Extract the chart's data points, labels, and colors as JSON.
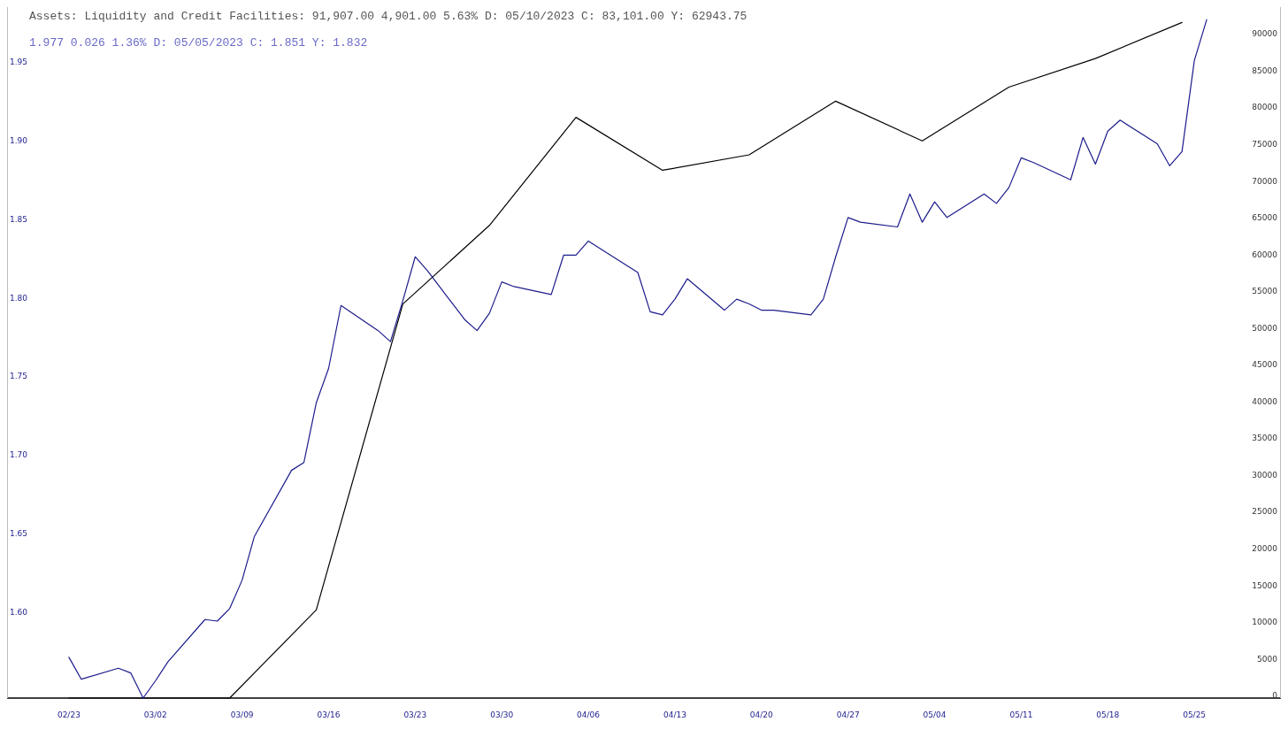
{
  "chart_data": {
    "type": "line",
    "annotations": [
      "Assets: Liquidity and Credit Facilities: 91,907.00 4,901.00 5.63% D: 05/10/2023 C: 83,101.00 Y:  62943.75",
      "1.977 0.026 1.36% D: 05/05/2023 C: 1.851 Y: 1.832"
    ],
    "xlim": [
      "2023-02-18",
      "2023-06-01"
    ],
    "xticks": [
      {
        "value": "2023-02-23",
        "label": "02/23"
      },
      {
        "value": "2023-03-02",
        "label": "03/02"
      },
      {
        "value": "2023-03-09",
        "label": "03/09"
      },
      {
        "value": "2023-03-16",
        "label": "03/16"
      },
      {
        "value": "2023-03-23",
        "label": "03/23"
      },
      {
        "value": "2023-03-30",
        "label": "03/30"
      },
      {
        "value": "2023-04-06",
        "label": "04/06"
      },
      {
        "value": "2023-04-13",
        "label": "04/13"
      },
      {
        "value": "2023-04-20",
        "label": "04/20"
      },
      {
        "value": "2023-04-27",
        "label": "04/27"
      },
      {
        "value": "2023-05-04",
        "label": "05/04"
      },
      {
        "value": "2023-05-11",
        "label": "05/11"
      },
      {
        "value": "2023-05-18",
        "label": "05/18"
      },
      {
        "value": "2023-05-25",
        "label": "05/25"
      }
    ],
    "ylim": [
      1.545,
      1.985
    ],
    "yticks": [
      {
        "value": 1.6,
        "label": "1.60"
      },
      {
        "value": 1.65,
        "label": "1.65"
      },
      {
        "value": 1.7,
        "label": "1.70"
      },
      1.75,
      {
        "value": 1.8,
        "label": "1.80"
      },
      1.85,
      {
        "value": 1.9,
        "label": "1.90"
      },
      1.95
    ],
    "y2lim": [
      0,
      94000
    ],
    "y2ticks": [
      0,
      5000,
      10000,
      15000,
      20000,
      25000,
      30000,
      35000,
      40000,
      45000,
      50000,
      55000,
      60000,
      65000,
      70000,
      75000,
      80000,
      85000,
      90000
    ],
    "series": [
      {
        "color": "#000000",
        "axis": "y2",
        "x": [
          "2023-02-23",
          "2023-03-08",
          "2023-03-15",
          "2023-03-22",
          "2023-03-29",
          "2023-04-05",
          "2023-04-12",
          "2023-04-19",
          "2023-04-26",
          "2023-05-03",
          "2023-05-10",
          "2023-05-17",
          "2023-05-24"
        ],
        "values": [
          0,
          0,
          12000,
          53600,
          64300,
          79000,
          71800,
          73900,
          81200,
          75800,
          83101,
          87000,
          91907
        ]
      },
      {
        "color": "#1c1c8c",
        "x": [
          "2023-02-23",
          "2023-02-24",
          "2023-02-27",
          "2023-02-28",
          "2023-03-01",
          "2023-03-02",
          "2023-03-03",
          "2023-03-06",
          "2023-03-07",
          "2023-03-08",
          "2023-03-09",
          "2023-03-10",
          "2023-03-13",
          "2023-03-14",
          "2023-03-15",
          "2023-03-16",
          "2023-03-17",
          "2023-03-20",
          "2023-03-21",
          "2023-03-22",
          "2023-03-23",
          "2023-03-24",
          "2023-03-27",
          "2023-03-28",
          "2023-03-29",
          "2023-03-30",
          "2023-03-31",
          "2023-04-03",
          "2023-04-04",
          "2023-04-05",
          "2023-04-06",
          "2023-04-10",
          "2023-04-11",
          "2023-04-12",
          "2023-04-13",
          "2023-04-14",
          "2023-04-17",
          "2023-04-18",
          "2023-04-19",
          "2023-04-20",
          "2023-04-21",
          "2023-04-24",
          "2023-04-25",
          "2023-04-26",
          "2023-04-27",
          "2023-04-28",
          "2023-05-01",
          "2023-05-02",
          "2023-05-03",
          "2023-05-04",
          "2023-05-05",
          "2023-05-08",
          "2023-05-09",
          "2023-05-10",
          "2023-05-11",
          "2023-05-12",
          "2023-05-15",
          "2023-05-16",
          "2023-05-17",
          "2023-05-18",
          "2023-05-19",
          "2023-05-22",
          "2023-05-23",
          "2023-05-24",
          "2023-05-25",
          "2023-05-26"
        ],
        "values": [
          1.571,
          1.557,
          1.564,
          1.561,
          1.545,
          1.556,
          1.568,
          1.595,
          1.594,
          1.602,
          1.62,
          1.648,
          1.69,
          1.695,
          1.733,
          1.755,
          1.795,
          1.779,
          1.772,
          1.798,
          1.826,
          1.817,
          1.786,
          1.779,
          1.79,
          1.81,
          1.807,
          1.802,
          1.827,
          1.827,
          1.836,
          1.816,
          1.791,
          1.789,
          1.799,
          1.812,
          1.792,
          1.799,
          1.796,
          1.792,
          1.792,
          1.789,
          1.799,
          1.826,
          1.851,
          1.848,
          1.845,
          1.866,
          1.848,
          1.861,
          1.851,
          1.866,
          1.86,
          1.87,
          1.889,
          1.886,
          1.875,
          1.902,
          1.885,
          1.906,
          1.913,
          1.898,
          1.884,
          1.893,
          1.951,
          1.977
        ]
      }
    ]
  }
}
